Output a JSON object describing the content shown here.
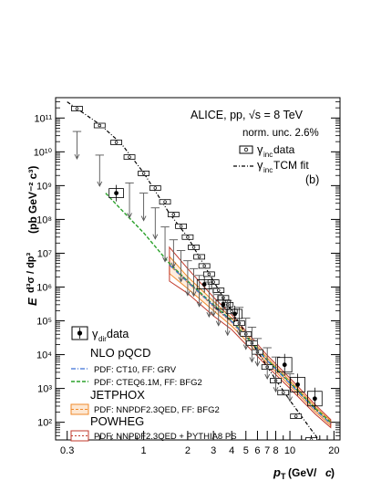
{
  "chart_data": {
    "type": "scatter",
    "x_scale": "log",
    "y_scale": "log",
    "xlim": [
      0.25,
      22
    ],
    "ylim": [
      30,
      400000000000
    ],
    "x_ticks": [
      0.3,
      1,
      2,
      3,
      4,
      5,
      6,
      7,
      8,
      10,
      20
    ],
    "x_tick_labels": [
      "0.3",
      "1",
      "2",
      "3",
      "4",
      "5",
      "6",
      "7",
      "8",
      "10",
      "20"
    ],
    "y_tick_labels": [
      "10²",
      "10³",
      "10⁴",
      "10⁵",
      "10⁶",
      "10⁷",
      "10⁸",
      "10⁹",
      "10¹⁰",
      "10¹¹"
    ],
    "xlabel_main": "p",
    "xlabel_sub": "T",
    "xlabel_units": "(GeV/",
    "xlabel_c": "c",
    "xlabel_close": ")",
    "ylabel_E": "E",
    "ylabel_frac": "d³σ / dp³",
    "ylabel_units": "(pb GeV⁻² c³)",
    "title_line1": "ALICE, pp, √s = 8 TeV",
    "title_line2": "norm. unc. 2.6%",
    "panel_label": "(b)",
    "legend_top": [
      {
        "symbol": "open-square",
        "label_main": "γ",
        "label_sub": "inc",
        "label_rest": " data"
      },
      {
        "symbol": "dash-dot",
        "label_main": "γ",
        "label_sub": "inc",
        "label_rest": " TCM fit"
      }
    ],
    "legend_bottom": {
      "data_entry": {
        "label_main": "γ",
        "label_sub": "dir",
        "label_rest": " data"
      },
      "header_nlo": "NLO pQCD",
      "nlo_ct10": "PDF: CT10, FF: GRV",
      "nlo_cteq": "PDF: CTEQ6.1M, FF: BFG2",
      "header_jetphox": "JETPHOX",
      "jetphox": "PDF: NNPDF2.3QED, FF: BFG2",
      "header_powheg": "POWHEG",
      "powheg": "PDF: NNPDF2.3QED + PYTHIA8 PS"
    },
    "colors": {
      "ct10": "#3a6fd8",
      "cteq": "#2aa02a",
      "jetphox": "#f08a2a",
      "powheg": "#c0392b",
      "data": "#000000"
    },
    "series": [
      {
        "name": "γ inc data",
        "x": [
          0.35,
          0.5,
          0.65,
          0.8,
          1.0,
          1.2,
          1.4,
          1.6,
          1.8,
          2.0,
          2.2,
          2.4,
          2.6,
          2.8,
          3.0,
          3.25,
          3.5,
          3.75,
          4.0,
          4.5,
          5.0,
          5.5,
          6.0,
          7.0,
          8.0,
          9.0,
          11.0,
          14.0
        ],
        "y": [
          190000000000.0,
          60000000000.0,
          19000000000.0,
          7000000000.0,
          2300000000.0,
          850000000.0,
          330000000.0,
          140000000.0,
          63000000.0,
          30000000.0,
          15000000.0,
          7800000.0,
          4200000.0,
          2400000.0,
          1400000.0,
          800000.0,
          480000.0,
          300000.0,
          190000.0,
          85000.0,
          41000.0,
          22000.0,
          12000.0,
          4300.0,
          1700.0,
          750.0,
          150.0,
          30.0
        ]
      },
      {
        "name": "γ inc TCM fit",
        "x": [
          0.3,
          0.5,
          0.7,
          1.0,
          1.5,
          2.0,
          3.0,
          4.0,
          5.0,
          6.0,
          8.0,
          10.0,
          14.0,
          18.0
        ],
        "y": [
          300000000000.0,
          65000000000.0,
          18000000000.0,
          2400000000.0,
          150000000.0,
          30000000.0,
          1500000.0,
          190000.0,
          42000.0,
          12500.0,
          1800.0,
          440.0,
          60.0,
          14.0
        ]
      },
      {
        "name": "γ dir data",
        "x": [
          0.65,
          2.6,
          3.5,
          4.2,
          9.2,
          11.3,
          14.8
        ],
        "y": [
          600000000.0,
          1200000.0,
          300000.0,
          160000.0,
          5000.0,
          1300.0,
          500.0
        ]
      },
      {
        "name": "γ dir upper limits",
        "x": [
          0.35,
          0.5,
          0.8,
          1.0,
          1.2,
          1.4,
          1.6,
          1.8,
          2.0,
          2.2,
          2.4,
          2.8,
          3.0,
          3.25,
          3.75,
          4.5,
          5.0,
          5.5,
          6.0,
          7.0,
          8.0,
          10.0
        ],
        "y": [
          40000000000.0,
          8000000000.0,
          1200000000.0,
          600000000.0,
          220000000.0,
          60000000.0,
          25000000.0,
          12000000.0,
          6000000.0,
          3500000.0,
          2200000.0,
          1400000.0,
          900000.0,
          600000.0,
          400000.0,
          250000.0,
          120000.0,
          65000.0,
          30000.0,
          16000.0,
          8500.0,
          2700.0
        ]
      },
      {
        "name": "NLO CTEQ6.1M BFG2",
        "x": [
          0.55,
          0.7,
          1.0,
          1.5,
          2.0,
          3.0,
          4.0,
          5.0,
          7.0,
          10.0,
          15.0,
          19.0
        ],
        "y": [
          600000000.0,
          200000000.0,
          40000000.0,
          5000000.0,
          1500000.0,
          300000.0,
          100000.0,
          35000.0,
          7000.0,
          1500.0,
          250.0,
          100.0
        ]
      },
      {
        "name": "NLO CT10 GRV",
        "x": [
          1.5,
          2.0,
          3.0,
          4.0,
          5.0,
          7.0,
          10.0,
          15.0,
          19.0
        ],
        "y": [
          4500000.0,
          1400000.0,
          280000.0,
          95000.0,
          33000.0,
          6600.0,
          1400.0,
          230.0,
          90.0
        ]
      }
    ],
    "bands": [
      {
        "name": "JETPHOX",
        "x": [
          1.5,
          2.0,
          3.0,
          4.0,
          5.0,
          7.0,
          10.0,
          15.0,
          19.0
        ],
        "y_low": [
          2500000.0,
          900000.0,
          200000.0,
          70000.0,
          26000.0,
          5500.0,
          1200.0,
          200.0,
          80.0
        ],
        "y_high": [
          8000000.0,
          2000000.0,
          380000.0,
          120000.0,
          42000.0,
          8000.0,
          1700.0,
          280.0,
          110.0
        ]
      },
      {
        "name": "POWHEG",
        "x": [
          1.5,
          2.0,
          3.0,
          4.0,
          5.0,
          7.0,
          10.0,
          15.0,
          19.0
        ],
        "y_low": [
          1500000.0,
          650000.0,
          140000.0,
          55000.0,
          20000.0,
          4500.0,
          1000.0,
          170.0,
          70.0
        ],
        "y_high": [
          15000000.0,
          3500000.0,
          500000.0,
          150000.0,
          50000.0,
          9500.0,
          2000.0,
          320.0,
          120.0
        ]
      }
    ]
  }
}
